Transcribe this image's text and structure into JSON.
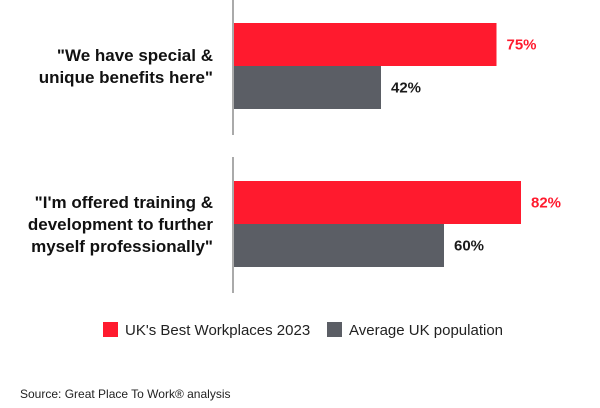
{
  "chart_data": {
    "type": "bar",
    "orientation": "horizontal",
    "categories": [
      "\"We have special & unique benefits here\"",
      "\"I'm offered training & development to further myself professionally\""
    ],
    "category_lines": [
      [
        "\"We have special &",
        "unique benefits here\""
      ],
      [
        "\"I'm offered training &",
        "development to further",
        "myself professionally\""
      ]
    ],
    "series": [
      {
        "name": "UK's Best Workplaces 2023",
        "values": [
          75,
          82
        ],
        "labels": [
          "75%",
          "82%"
        ],
        "color": "#ff1a2e",
        "label_color": "#ff1a2e"
      },
      {
        "name": "Average UK population",
        "values": [
          42,
          60
        ],
        "labels": [
          "42%",
          "60%"
        ],
        "color": "#5b5e65",
        "label_color": "#1a1a1a"
      }
    ],
    "xlim": [
      0,
      100
    ],
    "legend_position": "bottom",
    "grid": false,
    "title": "",
    "xlabel": "",
    "ylabel": ""
  },
  "footer": {
    "source": "Source: Great Place To Work® analysis"
  }
}
